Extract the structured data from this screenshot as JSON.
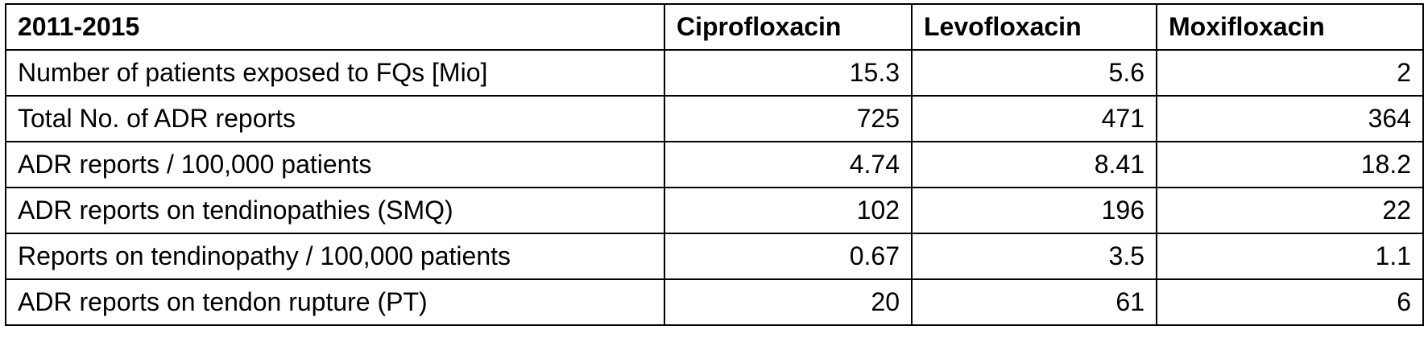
{
  "table": {
    "header": [
      "2011-2015",
      "Ciprofloxacin",
      "Levofloxacin",
      "Moxifloxacin"
    ],
    "rows": [
      [
        "Number of patients exposed to FQs [Mio]",
        15.3,
        5.6,
        2
      ],
      [
        "Total No. of ADR reports",
        725,
        471,
        364
      ],
      [
        "ADR reports / 100,000 patients",
        4.74,
        8.41,
        18.2
      ],
      [
        "ADR reports on tendinopathies (SMQ)",
        102,
        196,
        22
      ],
      [
        "Reports on tendinopathy / 100,000 patients",
        0.67,
        3.5,
        1.1
      ],
      [
        "ADR reports on tendon rupture (PT)",
        20,
        61,
        6
      ]
    ]
  }
}
